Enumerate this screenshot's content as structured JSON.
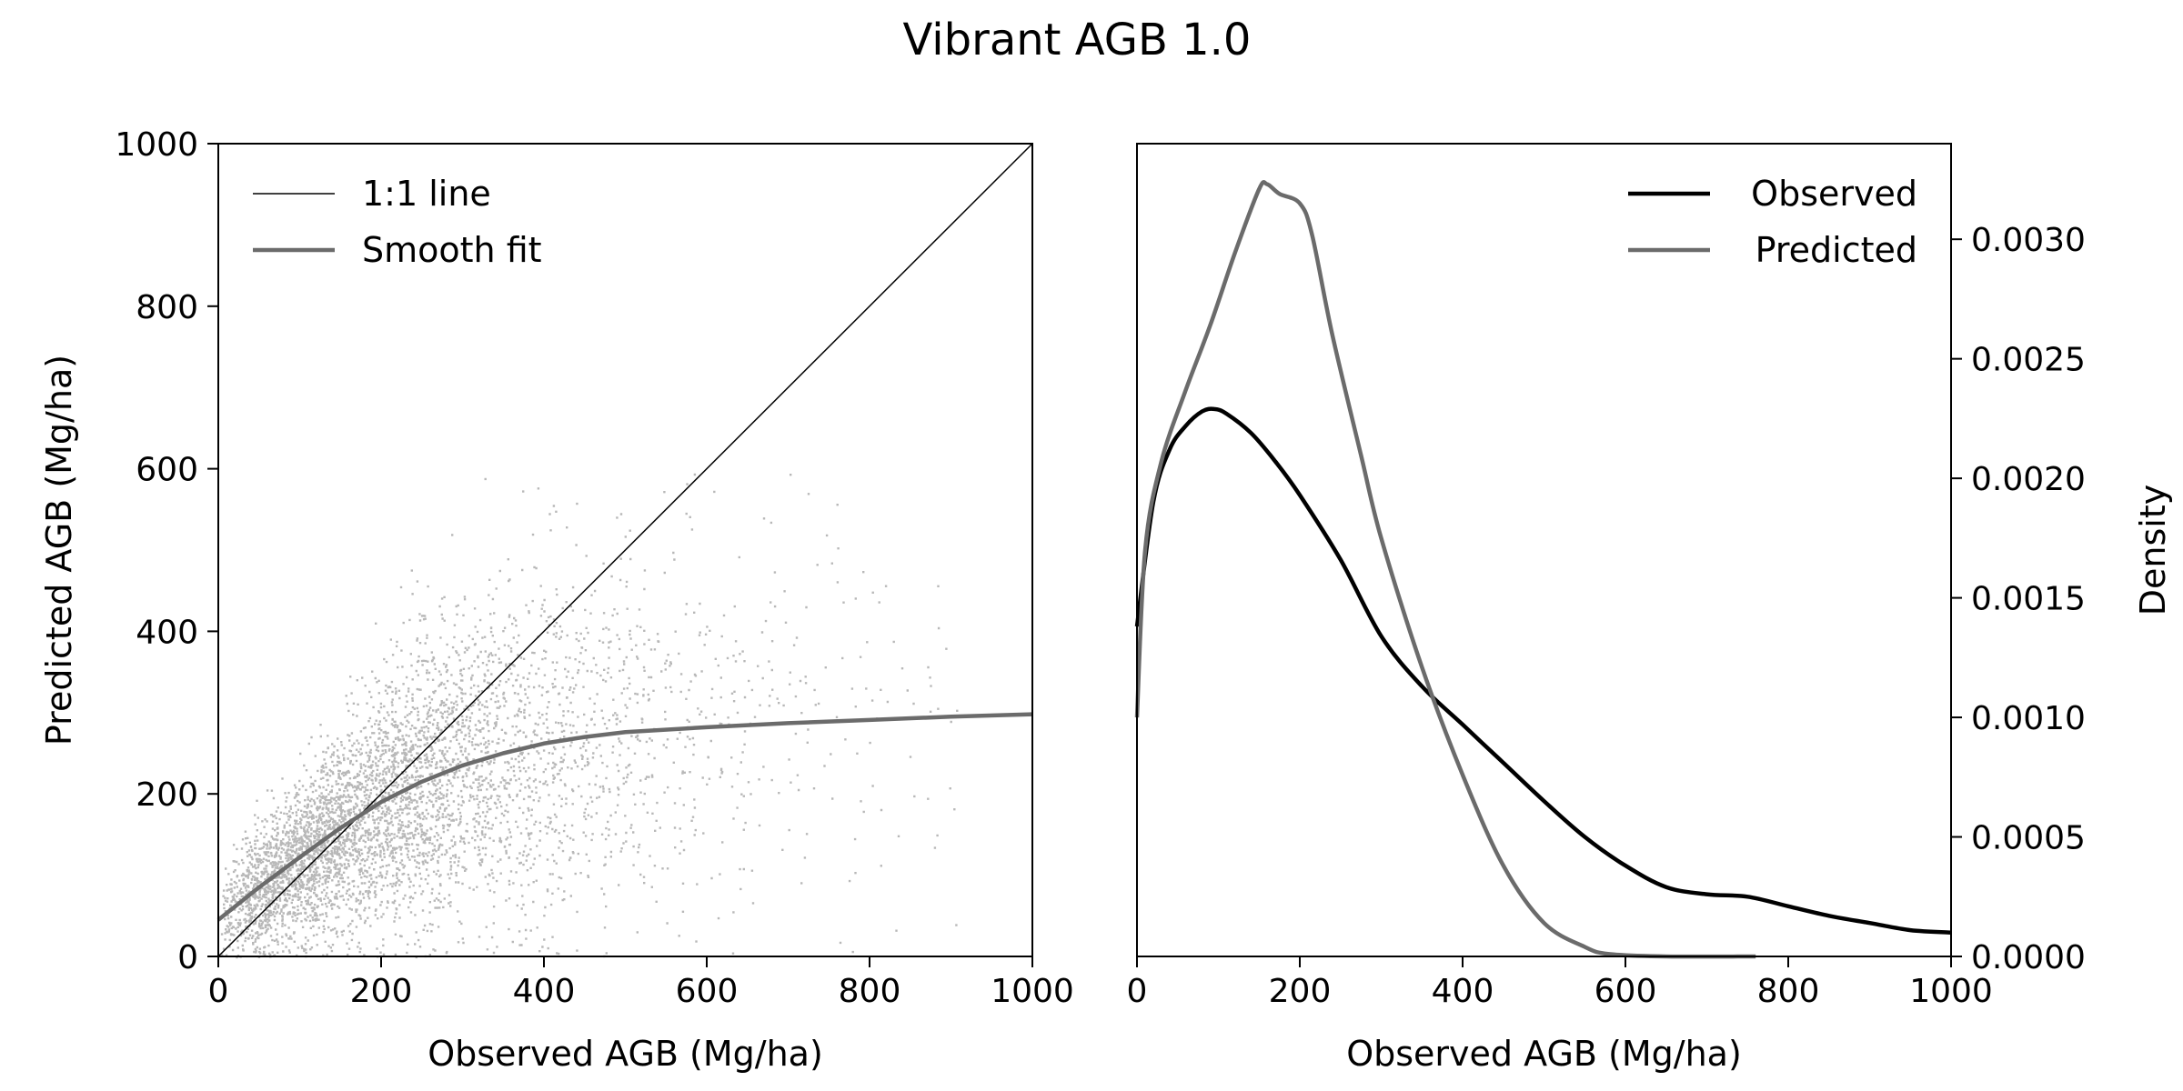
{
  "figure": {
    "title": "Vibrant AGB 1.0"
  },
  "chart_data": [
    {
      "type": "scatter",
      "xlabel": "Observed AGB (Mg/ha)",
      "ylabel": "Predicted AGB (Mg/ha)",
      "xlim": [
        0,
        1000
      ],
      "ylim": [
        0,
        1000
      ],
      "xticks": [
        "0",
        "200",
        "400",
        "600",
        "800",
        "1000"
      ],
      "yticks": [
        "0",
        "200",
        "400",
        "600",
        "800",
        "1000"
      ],
      "grid": false,
      "legend_position": "top-left",
      "colors": {
        "points": "#a6a6a6",
        "one_to_one": "#000000",
        "fit": "#6b6b6b"
      },
      "scatter_summary": {
        "approx_point_count": 5000,
        "observed_range": [
          0,
          1000
        ],
        "predicted_range": [
          0,
          610
        ]
      },
      "lines": [
        {
          "name": "1:1 line",
          "x": [
            0,
            1000
          ],
          "y": [
            0,
            1000
          ]
        },
        {
          "name": "Smooth fit",
          "x": [
            0,
            50,
            100,
            150,
            200,
            250,
            300,
            350,
            400,
            450,
            500,
            600,
            700,
            800,
            900,
            1000
          ],
          "y": [
            45,
            85,
            122,
            158,
            190,
            215,
            235,
            250,
            262,
            270,
            276,
            282,
            287,
            291,
            295,
            298
          ]
        }
      ]
    },
    {
      "type": "line",
      "xlabel": "Observed AGB (Mg/ha)",
      "ylabel": "Density",
      "xlim": [
        0,
        1000
      ],
      "ylim": [
        0,
        0.0034
      ],
      "xticks": [
        "0",
        "200",
        "400",
        "600",
        "800",
        "1000"
      ],
      "yticks": [
        "0.0000",
        "0.0005",
        "0.0010",
        "0.0015",
        "0.0020",
        "0.0025",
        "0.0030"
      ],
      "ytick_values": [
        0,
        0.0005,
        0.001,
        0.0015,
        0.002,
        0.0025,
        0.003
      ],
      "y_axis_side": "right",
      "grid": false,
      "legend_position": "top-right",
      "series": [
        {
          "name": "Observed",
          "color": "#000000",
          "x": [
            0,
            20,
            40,
            60,
            80,
            95,
            110,
            140,
            170,
            200,
            250,
            300,
            350,
            400,
            450,
            500,
            550,
            600,
            650,
            700,
            750,
            800,
            850,
            900,
            950,
            1000
          ],
          "y": [
            0.00138,
            0.0019,
            0.00212,
            0.00222,
            0.00228,
            0.00229,
            0.00227,
            0.00219,
            0.00207,
            0.00193,
            0.00166,
            0.00134,
            0.00113,
            0.00097,
            0.00081,
            0.00065,
            0.0005,
            0.00038,
            0.00029,
            0.00026,
            0.00025,
            0.00021,
            0.00017,
            0.00014,
            0.00011,
            0.0001
          ]
        },
        {
          "name": "Predicted",
          "color": "#6b6b6b",
          "x": [
            0,
            10,
            30,
            60,
            90,
            120,
            150,
            160,
            175,
            200,
            215,
            240,
            275,
            300,
            350,
            400,
            450,
            500,
            550,
            580,
            650,
            760
          ],
          "y": [
            0.001,
            0.0017,
            0.00207,
            0.00237,
            0.00264,
            0.00294,
            0.00321,
            0.00323,
            0.00319,
            0.00315,
            0.00302,
            0.0026,
            0.0021,
            0.00175,
            0.00121,
            0.00076,
            0.00038,
            0.00014,
            4e-05,
            1e-05,
            0.0,
            0.0
          ]
        }
      ]
    }
  ]
}
